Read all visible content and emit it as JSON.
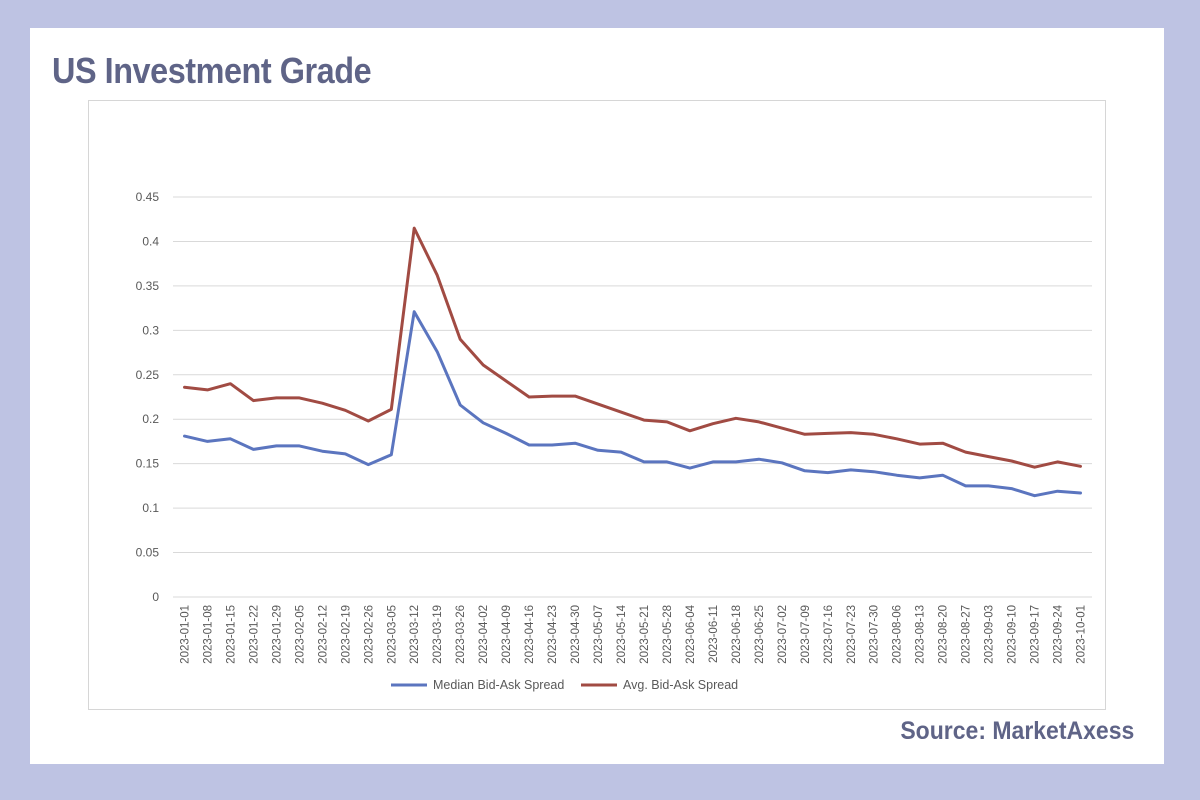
{
  "header": {
    "title": "US Investment Grade"
  },
  "footer": {
    "source": "Source: MarketAxess"
  },
  "colors": {
    "median": "#5b75bf",
    "avg": "#a14b43",
    "grid": "#d9d9d9",
    "background": "#bec3e3",
    "heading": "#5f6487"
  },
  "chart_data": {
    "type": "line",
    "title": "",
    "xlabel": "",
    "ylabel": "",
    "ylim": [
      0,
      0.45
    ],
    "yticks": [
      "0",
      "0.05",
      "0.1",
      "0.15",
      "0.2",
      "0.25",
      "0.3",
      "0.35",
      "0.4",
      "0.45"
    ],
    "grid": true,
    "legend_position": "bottom",
    "x": [
      "2023-01-01",
      "2023-01-08",
      "2023-01-15",
      "2023-01-22",
      "2023-01-29",
      "2023-02-05",
      "2023-02-12",
      "2023-02-19",
      "2023-02-26",
      "2023-03-05",
      "2023-03-12",
      "2023-03-19",
      "2023-03-26",
      "2023-04-02",
      "2023-04-09",
      "2023-04-16",
      "2023-04-23",
      "2023-04-30",
      "2023-05-07",
      "2023-05-14",
      "2023-05-21",
      "2023-05-28",
      "2023-06-04",
      "2023-06-11",
      "2023-06-18",
      "2023-06-25",
      "2023-07-02",
      "2023-07-09",
      "2023-07-16",
      "2023-07-23",
      "2023-07-30",
      "2023-08-06",
      "2023-08-13",
      "2023-08-20",
      "2023-08-27",
      "2023-09-03",
      "2023-09-10",
      "2023-09-17",
      "2023-09-24",
      "2023-10-01"
    ],
    "series": [
      {
        "name": "Median Bid-Ask Spread",
        "color": "#5b75bf",
        "values": [
          0.181,
          0.175,
          0.178,
          0.166,
          0.17,
          0.17,
          0.164,
          0.161,
          0.149,
          0.16,
          0.321,
          0.276,
          0.216,
          0.196,
          0.184,
          0.171,
          0.171,
          0.173,
          0.165,
          0.163,
          0.152,
          0.152,
          0.145,
          0.152,
          0.152,
          0.155,
          0.151,
          0.142,
          0.14,
          0.143,
          0.141,
          0.137,
          0.134,
          0.137,
          0.125,
          0.125,
          0.122,
          0.114,
          0.119,
          0.117
        ]
      },
      {
        "name": "Avg. Bid-Ask Spread",
        "color": "#a14b43",
        "values": [
          0.236,
          0.233,
          0.24,
          0.221,
          0.224,
          0.224,
          0.218,
          0.21,
          0.198,
          0.211,
          0.415,
          0.362,
          0.29,
          0.261,
          0.243,
          0.225,
          0.226,
          0.226,
          0.217,
          0.208,
          0.199,
          0.197,
          0.187,
          0.195,
          0.201,
          0.197,
          0.19,
          0.183,
          0.184,
          0.185,
          0.183,
          0.178,
          0.172,
          0.173,
          0.163,
          0.158,
          0.153,
          0.146,
          0.152,
          0.147
        ]
      }
    ]
  }
}
